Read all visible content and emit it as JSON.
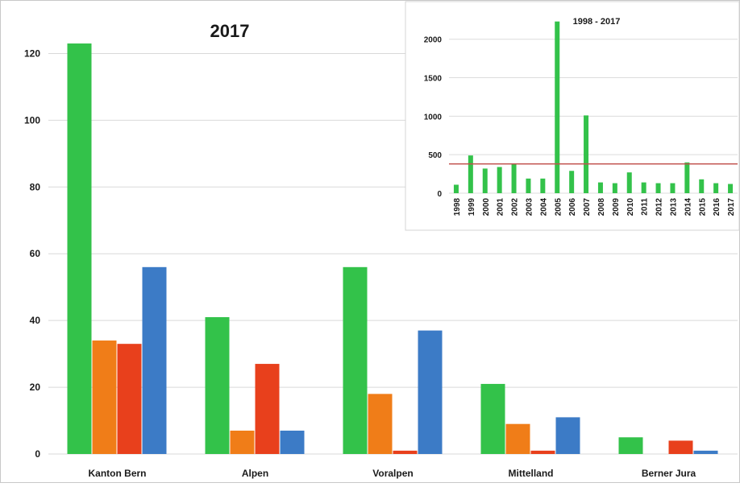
{
  "chart_data": [
    {
      "type": "bar",
      "title": "2017",
      "categories": [
        "Kanton Bern",
        "Alpen",
        "Voralpen",
        "Mittelland",
        "Berner Jura"
      ],
      "series": [
        {
          "values": [
            123,
            41,
            56,
            21,
            5
          ],
          "color": "#33c24a"
        },
        {
          "values": [
            34,
            7,
            18,
            9,
            0
          ],
          "color": "#f07d18"
        },
        {
          "values": [
            33,
            27,
            1,
            1,
            4
          ],
          "color": "#e8401c"
        },
        {
          "values": [
            56,
            7,
            37,
            11,
            1
          ],
          "color": "#3c7bc6"
        }
      ],
      "yticks": [
        "0",
        "20",
        "40",
        "60",
        "80",
        "100",
        "120"
      ],
      "ylim": [
        0,
        130
      ],
      "grid": true
    },
    {
      "type": "bar",
      "title": "1998 - 2017",
      "categories": [
        "1998",
        "1999",
        "2000",
        "2001",
        "2002",
        "2003",
        "2004",
        "2005",
        "2006",
        "2007",
        "2008",
        "2009",
        "2010",
        "2011",
        "2012",
        "2013",
        "2014",
        "2015",
        "2016",
        "2017"
      ],
      "series": [
        {
          "values": [
            110,
            490,
            320,
            340,
            380,
            190,
            190,
            2230,
            290,
            1010,
            140,
            130,
            270,
            140,
            130,
            130,
            400,
            180,
            130,
            120
          ],
          "color": "#33c24a"
        }
      ],
      "reference_line": {
        "value": 380,
        "color": "#c0504d"
      },
      "yticks": [
        "0",
        "500",
        "1000",
        "1500",
        "2000"
      ],
      "ylim": [
        0,
        2300
      ],
      "grid": true
    }
  ]
}
